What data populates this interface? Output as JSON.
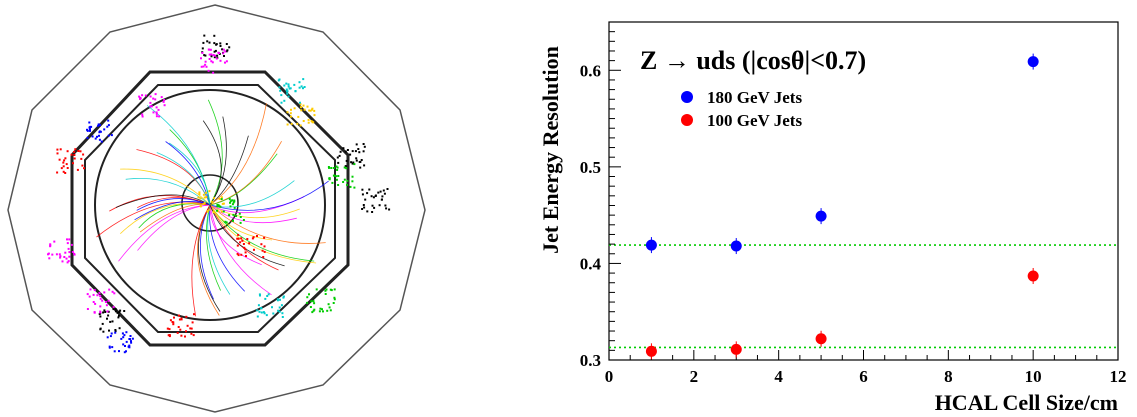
{
  "event_display": {
    "colors": [
      "#ff0000",
      "#0000ff",
      "#00cc00",
      "#ff00ff",
      "#00cccc",
      "#000000",
      "#ffcc00",
      "#ff6600"
    ]
  },
  "chart_data": {
    "type": "scatter",
    "title": "Z → uds (|cosθ|<0.7)",
    "xlabel": "HCAL Cell Size/cm",
    "ylabel": "Jet Energy Resolution",
    "xlim": [
      0,
      12
    ],
    "ylim": [
      0.3,
      0.65
    ],
    "x_ticks": [
      0,
      2,
      4,
      6,
      8,
      10,
      12
    ],
    "x_tick_labels": [
      "0",
      "2",
      "4",
      "6",
      "8",
      "10",
      "12"
    ],
    "y_ticks": [
      0.3,
      0.4,
      0.5,
      0.6
    ],
    "y_tick_labels": [
      "0.3",
      "0.4",
      "0.5",
      "0.6"
    ],
    "legend_position": "top-left",
    "grid": false,
    "series": [
      {
        "name": "180 GeV Jets",
        "color": "#0000ff",
        "x": [
          1,
          3,
          5,
          10
        ],
        "y": [
          0.419,
          0.418,
          0.449,
          0.609
        ]
      },
      {
        "name": "100 GeV Jets",
        "color": "#ff0000",
        "x": [
          1,
          3,
          5,
          10
        ],
        "y": [
          0.309,
          0.311,
          0.322,
          0.387
        ]
      }
    ],
    "reference_lines": [
      {
        "y": 0.419,
        "color": "#00cc00",
        "style": "dotted"
      },
      {
        "y": 0.313,
        "color": "#00cc00",
        "style": "dotted"
      }
    ]
  }
}
